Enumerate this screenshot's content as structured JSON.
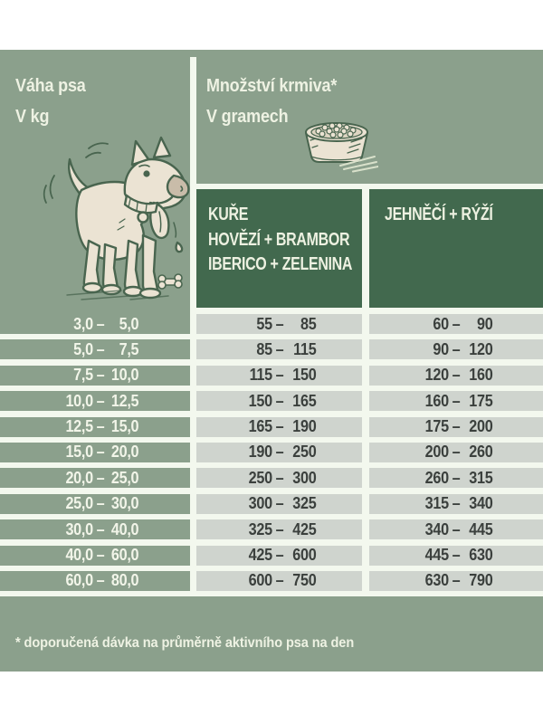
{
  "colors": {
    "page_background": "#ffffff",
    "panel_green": "#8ba08c",
    "header_dark_green": "#42694e",
    "value_cell_gray": "#cfd4ce",
    "separator_white": "#f3f8ee",
    "light_text": "#eef2e3",
    "dark_text": "#3b403d"
  },
  "weight_header": {
    "line1": "Váha psa",
    "line2": "V kg"
  },
  "amount_header": {
    "line1": "Množství krmiva*",
    "line2": "V gramech"
  },
  "product_columns": {
    "left": {
      "line1": "KUŘE",
      "line2": "HOVĚZÍ + BRAMBOR",
      "line3": "IBERICO + ZELENINA"
    },
    "right": {
      "line1": "JEHNĚČÍ + RÝŽÍ"
    }
  },
  "dash": "–",
  "rows": [
    {
      "weight_from": "3,0",
      "weight_to": "5,0",
      "left_from": "55",
      "left_to": "85",
      "right_from": "60",
      "right_to": "90"
    },
    {
      "weight_from": "5,0",
      "weight_to": "7,5",
      "left_from": "85",
      "left_to": "115",
      "right_from": "90",
      "right_to": "120"
    },
    {
      "weight_from": "7,5",
      "weight_to": "10,0",
      "left_from": "115",
      "left_to": "150",
      "right_from": "120",
      "right_to": "160"
    },
    {
      "weight_from": "10,0",
      "weight_to": "12,5",
      "left_from": "150",
      "left_to": "165",
      "right_from": "160",
      "right_to": "175"
    },
    {
      "weight_from": "12,5",
      "weight_to": "15,0",
      "left_from": "165",
      "left_to": "190",
      "right_from": "175",
      "right_to": "200"
    },
    {
      "weight_from": "15,0",
      "weight_to": "20,0",
      "left_from": "190",
      "left_to": "250",
      "right_from": "200",
      "right_to": "260"
    },
    {
      "weight_from": "20,0",
      "weight_to": "25,0",
      "left_from": "250",
      "left_to": "300",
      "right_from": "260",
      "right_to": "315"
    },
    {
      "weight_from": "25,0",
      "weight_to": "30,0",
      "left_from": "300",
      "left_to": "325",
      "right_from": "315",
      "right_to": "340"
    },
    {
      "weight_from": "30,0",
      "weight_to": "40,0",
      "left_from": "325",
      "left_to": "425",
      "right_from": "340",
      "right_to": "445"
    },
    {
      "weight_from": "40,0",
      "weight_to": "60,0",
      "left_from": "425",
      "left_to": "600",
      "right_from": "445",
      "right_to": "630"
    },
    {
      "weight_from": "60,0",
      "weight_to": "80,0",
      "left_from": "600",
      "left_to": "750",
      "right_from": "630",
      "right_to": "790"
    }
  ],
  "footnote": "* doporučená dávka na průměrně aktivního psa na den",
  "illustrations": {
    "dog": "cartoon dog with tongue out, drooling, wagging tail, treat on ground",
    "bowl": "dog food bowl filled with kibble"
  }
}
